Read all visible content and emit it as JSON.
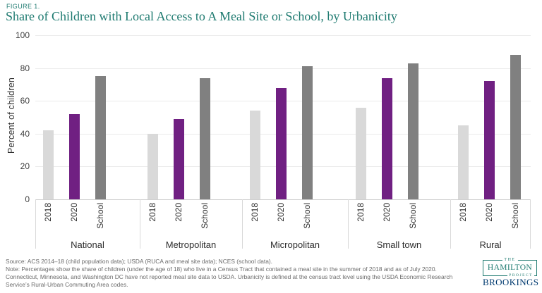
{
  "header": {
    "figure_label": "FIGURE 1.",
    "title": "Share of Children with Local Access to A Meal Site or School, by Urbanicity"
  },
  "colors": {
    "accent_teal": "#1e7a70",
    "bar_2018": "#d9d9d9",
    "bar_2020": "#702082",
    "bar_school": "#808080",
    "brookings_navy": "#003a70"
  },
  "chart_data": {
    "type": "bar",
    "categories": [
      "National",
      "Metropolitan",
      "Micropolitan",
      "Small town",
      "Rural"
    ],
    "series": [
      {
        "name": "2018",
        "color": "#d9d9d9",
        "values": [
          42,
          40,
          54,
          56,
          45
        ]
      },
      {
        "name": "2020",
        "color": "#702082",
        "values": [
          52,
          49,
          68,
          74,
          72
        ]
      },
      {
        "name": "School",
        "color": "#808080",
        "values": [
          75,
          74,
          81,
          83,
          88
        ]
      }
    ],
    "title": "Share of Children with Local Access to A Meal Site or School, by Urbanicity",
    "xlabel": "",
    "ylabel": "Percent of children",
    "ylim": [
      0,
      100
    ],
    "yticks": [
      0,
      20,
      40,
      60,
      80,
      100
    ],
    "grid": true,
    "legend_position": "none (series labeled under each bar)"
  },
  "footer": {
    "lines": [
      "Source: ACS 2014–18 (child population data); USDA (RUCA and meal site data); NCES (school data).",
      "Note: Percentages show the share of children (under the age of 18) who live in a Census Tract that contained a meal site in the summer of 2018 and as of July 2020.",
      "Connecticut, Minnesota, and Washington DC have not reported meal site data to USDA. Urbanicity is defined at the census tract level using the USDA Economic Research",
      "Service’s Rural-Urban Commuting Area codes."
    ]
  },
  "logos": {
    "hamilton_the": "THE",
    "hamilton_name": "HAMILTON",
    "hamilton_project": "PROJECT",
    "brookings": "BROOKINGS"
  }
}
